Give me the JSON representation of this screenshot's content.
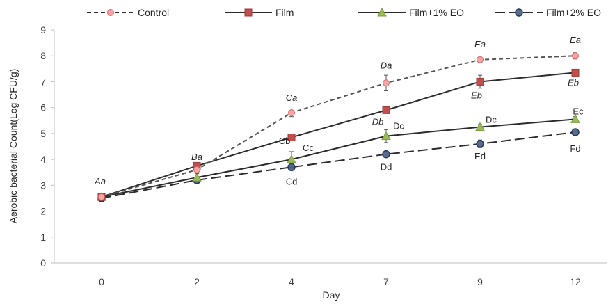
{
  "chart_data": {
    "type": "line",
    "title": "",
    "xlabel": "Day",
    "ylabel": "Aerobic bacterial Count(Log CFU/g)",
    "categories": [
      "0",
      "2",
      "4",
      "7",
      "9",
      "12"
    ],
    "ylim": [
      0,
      9
    ],
    "yticks": [
      "0",
      "1",
      "2",
      "3",
      "4",
      "5",
      "6",
      "7",
      "8",
      "9"
    ],
    "grid": false,
    "legend_position": "top",
    "series": [
      {
        "name": "Control",
        "values": [
          2.55,
          3.6,
          5.8,
          6.95,
          7.85,
          8.0
        ],
        "errors": [
          0.05,
          0.15,
          0.15,
          0.3,
          0.1,
          0.12
        ],
        "color": "#e06060",
        "line_style": "short-dash",
        "marker": "circle",
        "labels": [
          "Aa",
          "Ba",
          "Ca",
          "Da",
          "Ea",
          "Ea"
        ],
        "label_style": "italic"
      },
      {
        "name": "Film",
        "values": [
          2.55,
          3.75,
          4.85,
          5.9,
          7.0,
          7.35
        ],
        "errors": [
          0.05,
          0.1,
          0.1,
          0.12,
          0.25,
          0.12
        ],
        "color": "#c0504d",
        "line_style": "solid",
        "marker": "square",
        "labels": [
          "",
          "",
          "",
          "Db",
          "Eb",
          "Eb"
        ],
        "label_style": "italic"
      },
      {
        "name": "Film+1% EO",
        "values": [
          2.55,
          3.3,
          4.0,
          4.9,
          5.25,
          5.55
        ],
        "errors": [
          0.05,
          0.1,
          0.3,
          0.25,
          0.1,
          0.1
        ],
        "color": "#9bbb59",
        "line_style": "solid",
        "marker": "triangle",
        "labels": [
          "",
          "",
          "Cb",
          "Dc",
          "Dc",
          "Ec"
        ],
        "extra_labels": [
          "",
          "",
          "Cc",
          "",
          "",
          ""
        ]
      },
      {
        "name": "Film+2% EO",
        "values": [
          2.5,
          3.2,
          3.7,
          4.2,
          4.6,
          5.05
        ],
        "errors": [
          0.05,
          0.05,
          0.1,
          0.1,
          0.15,
          0.1
        ],
        "color": "#1f3864",
        "line_style": "long-dash",
        "marker": "circle",
        "labels": [
          "",
          "",
          "Cd",
          "Dd",
          "Ed",
          "Fd"
        ]
      }
    ],
    "legend": [
      "Control",
      "Film",
      "Film+1% EO",
      "Film+2% EO"
    ]
  }
}
